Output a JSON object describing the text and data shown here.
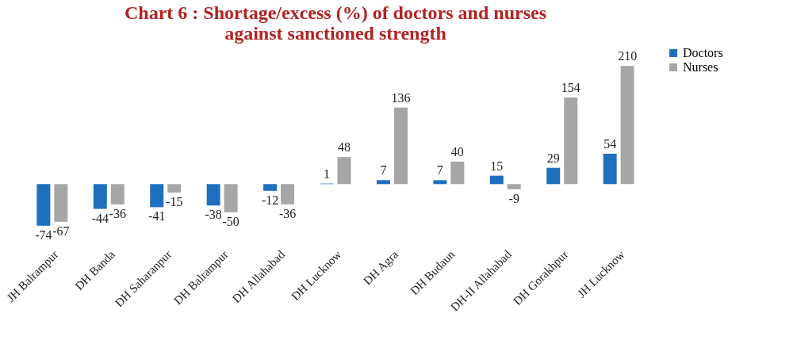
{
  "chart_data": {
    "type": "bar",
    "title": "Chart 6 : Shortage/excess (%) of doctors and nurses\nagainst sanctioned strength",
    "categories": [
      "JH Balrampur",
      "DH Banda",
      "DH Saharanpur",
      "DH Balrampur",
      "DH Allahabad",
      "DH Lucknow",
      "DH Agra",
      "DH Budaun",
      "DH-II Allahabad",
      "DH Gorakhpur",
      "JH Lucknow"
    ],
    "series": [
      {
        "name": "Doctors",
        "color": "#1f6fbf",
        "values": [
          -74,
          -44,
          -41,
          -38,
          -12,
          1,
          7,
          7,
          15,
          29,
          54
        ]
      },
      {
        "name": "Nurses",
        "color": "#a6a6a6",
        "values": [
          -67,
          -36,
          -15,
          -50,
          -36,
          48,
          136,
          40,
          -9,
          154,
          210
        ]
      }
    ],
    "data_labels": true,
    "legend": "right",
    "grid": false
  }
}
